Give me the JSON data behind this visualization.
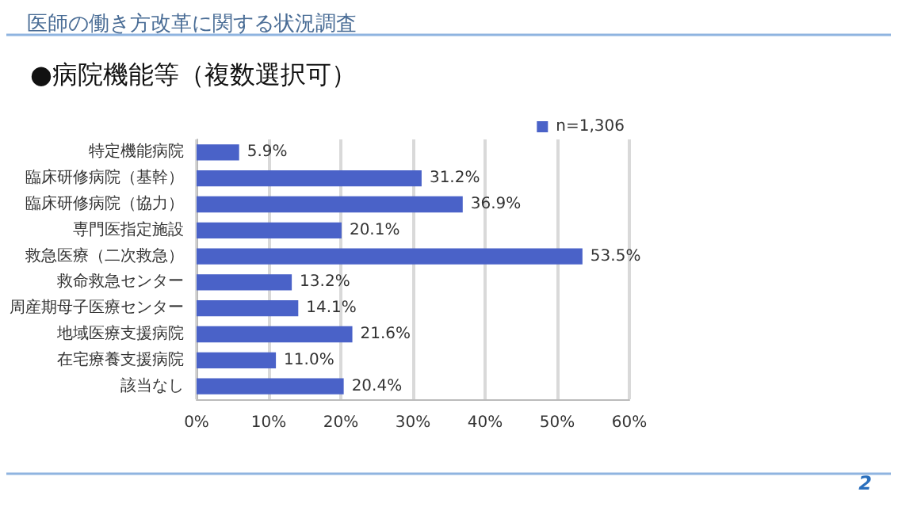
{
  "chart_data": {
    "type": "bar",
    "orientation": "horizontal",
    "title": "医師の働き方改革に関する状況調査",
    "subtitle": "●病院機能等（複数選択可）",
    "categories": [
      "特定機能病院",
      "臨床研修病院（基幹）",
      "臨床研修病院（協力）",
      "専門医指定施設",
      "救急医療（二次救急）",
      "救命救急センター",
      "周産期母子医療センター",
      "地域医療支援病院",
      "在宅療養支援病院",
      "該当なし"
    ],
    "series": [
      {
        "name": "n=1,306",
        "color": "#4a62c8",
        "values": [
          5.9,
          31.2,
          36.9,
          20.1,
          53.5,
          13.2,
          14.1,
          21.6,
          11.0,
          20.4
        ],
        "value_labels": [
          "5.9%",
          "31.2%",
          "36.9%",
          "20.1%",
          "53.5%",
          "13.2%",
          "14.1%",
          "21.6%",
          "11.0%",
          "20.4%"
        ]
      }
    ],
    "xlim": [
      0,
      60
    ],
    "xticks": [
      {
        "value": 0,
        "label": "0%"
      },
      {
        "value": 10,
        "label": "10%"
      },
      {
        "value": 20,
        "label": "20%"
      },
      {
        "value": 30,
        "label": "30%"
      },
      {
        "value": 40,
        "label": "40%"
      },
      {
        "value": 50,
        "label": "50%"
      },
      {
        "value": 60,
        "label": "60%"
      }
    ],
    "grid": "x",
    "legend": "top right",
    "annotations": [
      "2"
    ]
  }
}
